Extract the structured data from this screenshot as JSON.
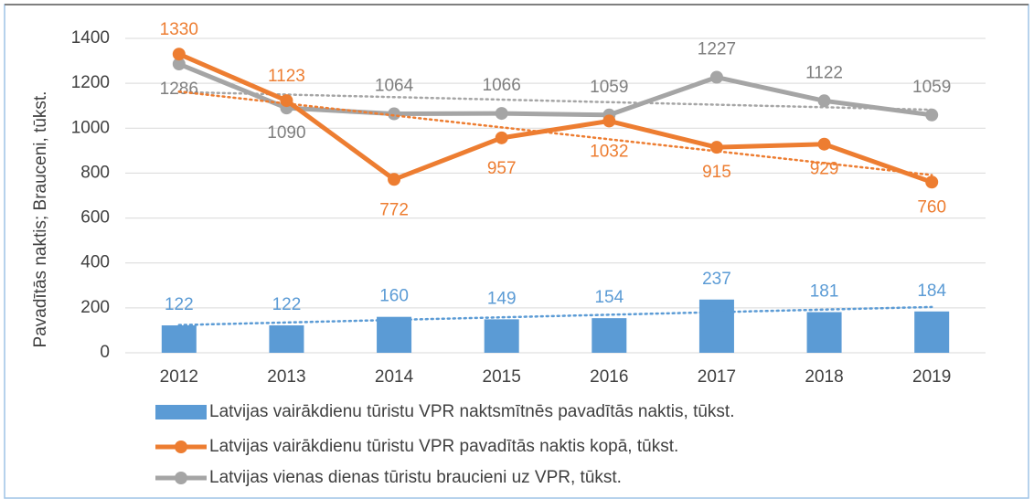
{
  "chart_data": {
    "type": "bar-line",
    "y_axis_label": "Pavadītās naktis; Brauceni, tūkst.",
    "categories": [
      "2012",
      "2013",
      "2014",
      "2015",
      "2016",
      "2017",
      "2018",
      "2019"
    ],
    "series": [
      {
        "name": "Latvijas vairākdienu tūristu VPR naktsmītnēs pavadītās naktis, tūkst.",
        "type": "bar",
        "color": "#5b9bd5",
        "values": [
          122,
          122,
          160,
          149,
          154,
          237,
          181,
          184
        ]
      },
      {
        "name": "Latvijas vairākdienu tūristu VPR pavadītās naktis kopā, tūkst.",
        "type": "line",
        "color": "#ed7d31",
        "values": [
          1330,
          1123,
          772,
          957,
          1032,
          915,
          929,
          760
        ]
      },
      {
        "name": "Latvijas vienas dienas tūristu braucieni uz VPR, tūkst.",
        "type": "line",
        "color": "#a5a5a5",
        "values": [
          1286,
          1090,
          1064,
          1066,
          1059,
          1227,
          1122,
          1059
        ]
      }
    ],
    "ylim": [
      0,
      1400
    ],
    "yticks": [
      0,
      200,
      400,
      600,
      800,
      1000,
      1200,
      1400
    ],
    "grid": true,
    "trendline": true,
    "legend": "bottom"
  }
}
